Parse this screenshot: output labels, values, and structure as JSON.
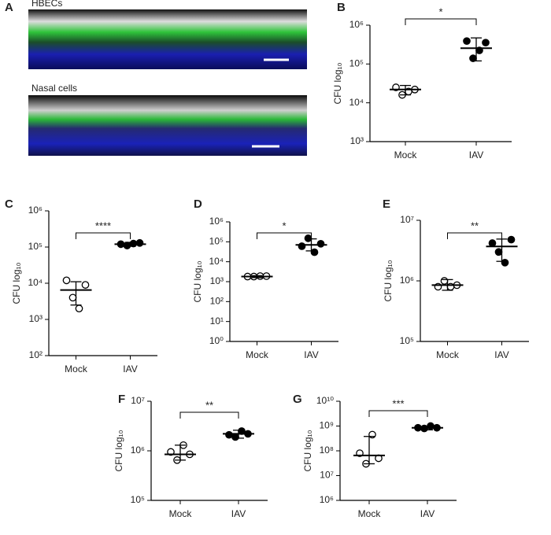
{
  "panel_a": {
    "label": "A",
    "images": [
      "HBECs",
      "Nasal cells"
    ]
  },
  "chart_data": [
    {
      "type": "scatter",
      "panel": "B",
      "ylabel": "CFU log₁₀",
      "yscale": "log",
      "categories": [
        "Mock",
        "IAV"
      ],
      "ylim": [
        1000,
        1000000
      ],
      "yticks": [
        {
          "value": 1000,
          "label": "10³"
        },
        {
          "value": 10000,
          "label": "10⁴"
        },
        {
          "value": 100000,
          "label": "10⁵"
        },
        {
          "value": 1000000,
          "label": "10⁶"
        }
      ],
      "significance": "*",
      "color": "#000000",
      "series": [
        {
          "marker": "open",
          "values": [
            25000,
            16000,
            19500,
            22000
          ],
          "mean": 22000,
          "error_low": 16000,
          "error_high": 28000
        },
        {
          "marker": "filled",
          "values": [
            390000,
            140000,
            224000,
            355000
          ],
          "mean": 256000,
          "error_low": 120000,
          "error_high": 470000
        }
      ]
    },
    {
      "type": "scatter",
      "panel": "C",
      "ylabel": "CFU log₁₀",
      "yscale": "log",
      "categories": [
        "Mock",
        "IAV"
      ],
      "ylim": [
        100,
        1000000
      ],
      "yticks": [
        {
          "value": 100,
          "label": "10²"
        },
        {
          "value": 1000,
          "label": "10³"
        },
        {
          "value": 10000,
          "label": "10⁴"
        },
        {
          "value": 100000,
          "label": "10⁵"
        },
        {
          "value": 1000000,
          "label": "10⁶"
        }
      ],
      "significance": "****",
      "color": "#000000",
      "series": [
        {
          "marker": "open",
          "values": [
            12000,
            4000,
            2000,
            9000
          ],
          "mean": 6500,
          "error_low": 2500,
          "error_high": 11000
        },
        {
          "marker": "filled",
          "values": [
            120000,
            110000,
            125000,
            130000
          ],
          "mean": 120000,
          "error_low": 105000,
          "error_high": 135000
        }
      ]
    },
    {
      "type": "scatter",
      "panel": "D",
      "ylabel": "CFU log₁₀",
      "yscale": "log",
      "categories": [
        "Mock",
        "IAV"
      ],
      "ylim": [
        1,
        1000000
      ],
      "yticks": [
        {
          "value": 1,
          "label": "10⁰"
        },
        {
          "value": 10,
          "label": "10¹"
        },
        {
          "value": 100,
          "label": "10²"
        },
        {
          "value": 1000,
          "label": "10³"
        },
        {
          "value": 10000,
          "label": "10⁴"
        },
        {
          "value": 100000,
          "label": "10⁵"
        },
        {
          "value": 1000000,
          "label": "10⁶"
        }
      ],
      "significance": "*",
      "color": "#000000",
      "series": [
        {
          "marker": "open",
          "values": [
            1800,
            1800,
            1900,
            1900
          ],
          "mean": 1800,
          "error_low": 1600,
          "error_high": 2000
        },
        {
          "marker": "filled",
          "values": [
            60000,
            150000,
            30000,
            80000
          ],
          "mean": 70000,
          "error_low": 35000,
          "error_high": 140000
        }
      ]
    },
    {
      "type": "scatter",
      "panel": "E",
      "ylabel": "CFU log₁₀",
      "yscale": "log",
      "categories": [
        "Mock",
        "IAV"
      ],
      "ylim": [
        100000,
        10000000
      ],
      "yticks": [
        {
          "value": 100000,
          "label": "10⁵"
        },
        {
          "value": 1000000,
          "label": "10⁶"
        },
        {
          "value": 10000000,
          "label": "10⁷"
        }
      ],
      "significance": "**",
      "color": "#000000",
      "series": [
        {
          "marker": "open",
          "values": [
            800000,
            1000000,
            800000,
            850000
          ],
          "mean": 850000,
          "error_low": 700000,
          "error_high": 1050000
        },
        {
          "marker": "filled",
          "values": [
            4200000,
            3000000,
            2000000,
            4800000
          ],
          "mean": 3700000,
          "error_low": 2100000,
          "error_high": 4900000
        }
      ]
    },
    {
      "type": "scatter",
      "panel": "F",
      "ylabel": "CFU log₁₀",
      "yscale": "log",
      "categories": [
        "Mock",
        "IAV"
      ],
      "ylim": [
        100000,
        10000000
      ],
      "yticks": [
        {
          "value": 100000,
          "label": "10⁵"
        },
        {
          "value": 1000000,
          "label": "10⁶"
        },
        {
          "value": 10000000,
          "label": "10⁷"
        }
      ],
      "significance": "**",
      "color": "#000000",
      "series": [
        {
          "marker": "open",
          "values": [
            950000,
            650000,
            1300000,
            850000
          ],
          "mean": 850000,
          "error_low": 650000,
          "error_high": 1300000
        },
        {
          "marker": "filled",
          "values": [
            2100000,
            1900000,
            2500000,
            2200000
          ],
          "mean": 2200000,
          "error_low": 1800000,
          "error_high": 2600000
        }
      ]
    },
    {
      "type": "scatter",
      "panel": "G",
      "ylabel": "CFU log₁₀",
      "yscale": "log",
      "categories": [
        "Mock",
        "IAV"
      ],
      "ylim": [
        1000000,
        10000000000
      ],
      "yticks": [
        {
          "value": 1000000,
          "label": "10⁶"
        },
        {
          "value": 10000000,
          "label": "10⁷"
        },
        {
          "value": 100000000,
          "label": "10⁸"
        },
        {
          "value": 1000000000,
          "label": "10⁹"
        },
        {
          "value": 10000000000,
          "label": "10¹⁰"
        }
      ],
      "significance": "***",
      "color": "#000000",
      "series": [
        {
          "marker": "open",
          "values": [
            80000000,
            30000000,
            450000000,
            50000000
          ],
          "mean": 65000000,
          "error_low": 30000000,
          "error_high": 380000000
        },
        {
          "marker": "filled",
          "values": [
            850000000,
            800000000,
            1000000000,
            850000000
          ],
          "mean": 850000000,
          "error_low": 700000000,
          "error_high": 1000000000
        }
      ]
    }
  ]
}
